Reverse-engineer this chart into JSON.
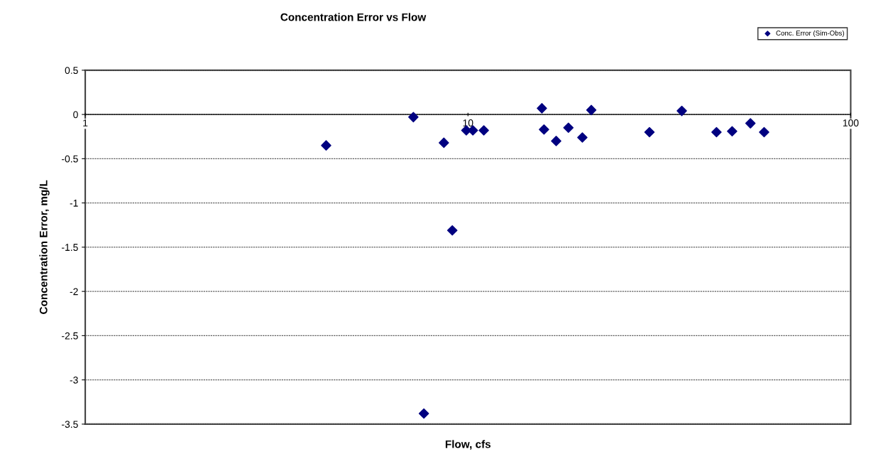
{
  "chart_data": {
    "type": "scatter",
    "title": "Concentration Error vs Flow",
    "xlabel": "Flow, cfs",
    "ylabel": "Concentration Error, mg/L",
    "log": "x",
    "xlim": [
      1,
      100
    ],
    "xticks": [
      1,
      10,
      100
    ],
    "ylim": [
      -3.5,
      0.5
    ],
    "yticks": [
      -3.5,
      -3,
      -2.5,
      -2,
      -1.5,
      -1,
      -0.5,
      0,
      0.5
    ],
    "grid": "y",
    "legend": "top right",
    "marker": "diamond",
    "series": [
      {
        "name": "Conc. Error (Sim-Obs)",
        "color": "#000080",
        "x": [
          4.26,
          7.2,
          8.65,
          9.1,
          7.67,
          9.9,
          10.3,
          11.0,
          15.6,
          15.8,
          17.0,
          18.3,
          19.9,
          21.0,
          29.8,
          36.2,
          44.6,
          49.0,
          54.7,
          59.4
        ],
        "values": [
          -0.35,
          -0.03,
          -0.32,
          -1.31,
          -3.38,
          -0.18,
          -0.18,
          -0.18,
          0.07,
          -0.17,
          -0.3,
          -0.15,
          -0.26,
          0.05,
          -0.2,
          0.04,
          -0.2,
          -0.19,
          -0.1,
          -0.2
        ]
      }
    ]
  }
}
